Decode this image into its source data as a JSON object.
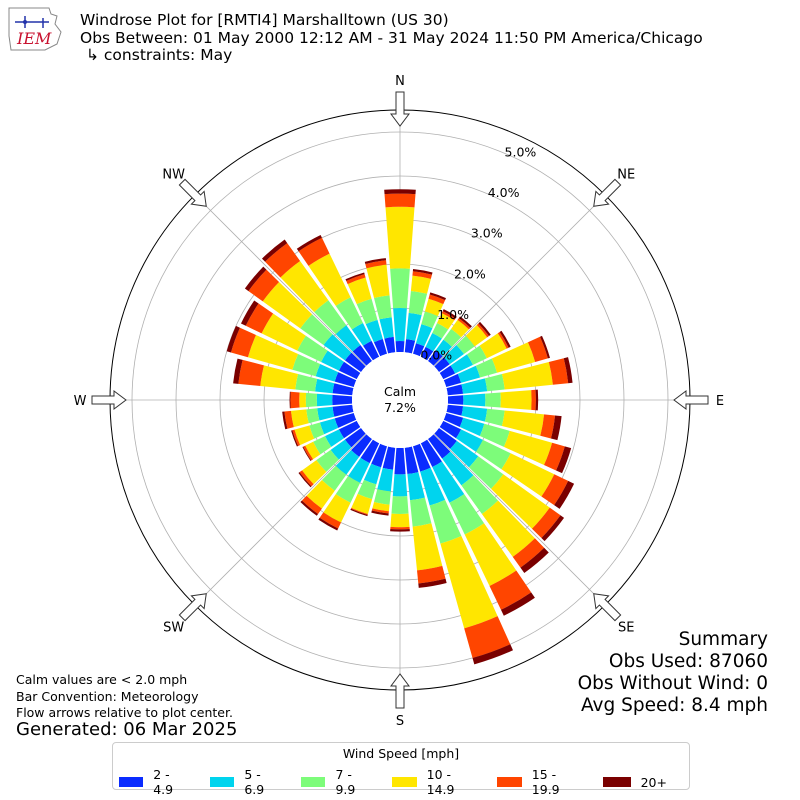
{
  "header": {
    "line1": "Windrose Plot for [RMTI4] Marshalltown (US 30)",
    "line2": "Obs Between: 01 May 2000 12:12 AM - 31 May 2024 11:50 PM America/Chicago",
    "line3": "↳ constraints: May"
  },
  "logo": {
    "text": "IEM",
    "color": "#c8102e"
  },
  "notes": {
    "calm_note": "Calm values are < 2.0 mph",
    "bar_convention": "Bar Convention: Meteorology",
    "flow_arrows": "Flow arrows relative to plot center.",
    "generated": "Generated: 06 Mar 2025"
  },
  "summary": {
    "title": "Summary",
    "obs_used": "Obs Used: 87060",
    "obs_without_wind": "Obs Without Wind: 0",
    "avg_speed": "Avg Speed: 8.4 mph"
  },
  "legend": {
    "title": "Wind Speed [mph]",
    "items": [
      {
        "label": "2 - 4.9",
        "color": "#0a2cff"
      },
      {
        "label": "5 - 6.9",
        "color": "#00d4ee"
      },
      {
        "label": "7 - 9.9",
        "color": "#7dfc7a"
      },
      {
        "label": "10 - 14.9",
        "color": "#ffe600"
      },
      {
        "label": "15 - 19.9",
        "color": "#ff4500"
      },
      {
        "label": "20+",
        "color": "#7a0000"
      }
    ]
  },
  "chart_data": {
    "type": "windrose",
    "calm_label": "Calm",
    "calm_value": "7.2%",
    "cardinal_labels": [
      "N",
      "NE",
      "E",
      "SE",
      "S",
      "SW",
      "W",
      "NW"
    ],
    "radial_ticks": [
      "0.0%",
      "1.0%",
      "2.0%",
      "3.0%",
      "4.0%",
      "5.0%"
    ],
    "rmax_percent": 5.5,
    "directions_deg": [
      0,
      10,
      20,
      30,
      40,
      50,
      60,
      70,
      80,
      90,
      100,
      110,
      120,
      130,
      140,
      150,
      160,
      170,
      180,
      190,
      200,
      210,
      220,
      230,
      240,
      250,
      260,
      270,
      280,
      290,
      300,
      310,
      320,
      330,
      340,
      350
    ],
    "bins": [
      "2 - 4.9",
      "5 - 6.9",
      "7 - 9.9",
      "10 - 14.9",
      "15 - 19.9",
      "20+"
    ],
    "cumulative_percent": [
      [
        0.25,
        1.0,
        1.9,
        3.3,
        3.6,
        3.7
      ],
      [
        0.3,
        0.9,
        1.4,
        1.75,
        1.85,
        1.9
      ],
      [
        0.25,
        0.7,
        1.0,
        1.3,
        1.4,
        1.45
      ],
      [
        0.25,
        0.6,
        0.85,
        1.1,
        1.15,
        1.2
      ],
      [
        0.3,
        0.6,
        0.9,
        1.15,
        1.2,
        1.25
      ],
      [
        0.3,
        0.7,
        1.0,
        1.35,
        1.4,
        1.45
      ],
      [
        0.3,
        0.75,
        1.1,
        1.6,
        1.65,
        1.7
      ],
      [
        0.35,
        0.8,
        1.2,
        2.1,
        2.4,
        2.45
      ],
      [
        0.35,
        0.9,
        1.3,
        2.4,
        2.75,
        2.85
      ],
      [
        0.35,
        0.85,
        1.2,
        1.9,
        2.0,
        2.05
      ],
      [
        0.35,
        0.9,
        1.3,
        2.2,
        2.45,
        2.6
      ],
      [
        0.4,
        0.9,
        1.5,
        2.5,
        2.8,
        2.95
      ],
      [
        0.45,
        1.0,
        1.7,
        2.8,
        3.15,
        3.3
      ],
      [
        0.5,
        1.1,
        1.8,
        3.1,
        3.4,
        3.5
      ],
      [
        0.55,
        1.3,
        2.1,
        3.3,
        3.6,
        3.75
      ],
      [
        0.6,
        1.5,
        2.3,
        3.6,
        4.2,
        4.35
      ],
      [
        0.6,
        1.4,
        2.3,
        4.3,
        5.0,
        5.15
      ],
      [
        0.6,
        1.2,
        1.8,
        2.8,
        3.1,
        3.2
      ],
      [
        0.6,
        1.1,
        1.5,
        1.8,
        1.85,
        1.9
      ],
      [
        0.5,
        1.0,
        1.3,
        1.45,
        1.5,
        1.55
      ],
      [
        0.5,
        0.9,
        1.25,
        1.6,
        1.62,
        1.65
      ],
      [
        0.5,
        1.0,
        1.5,
        2.0,
        2.15,
        2.2
      ],
      [
        0.5,
        1.0,
        1.45,
        1.95,
        2.1,
        2.15
      ],
      [
        0.45,
        0.85,
        1.25,
        1.65,
        1.72,
        1.75
      ],
      [
        0.45,
        0.8,
        1.1,
        1.3,
        1.35,
        1.37
      ],
      [
        0.45,
        0.8,
        1.05,
        1.4,
        1.45,
        1.48
      ],
      [
        0.45,
        0.8,
        1.05,
        1.4,
        1.55,
        1.6
      ],
      [
        0.45,
        0.8,
        1.05,
        1.2,
        1.4,
        1.42
      ],
      [
        0.45,
        0.85,
        1.3,
        2.1,
        2.6,
        2.72
      ],
      [
        0.45,
        0.9,
        1.45,
        2.5,
        2.9,
        3.0
      ],
      [
        0.45,
        0.9,
        1.5,
        2.4,
        2.8,
        2.92
      ],
      [
        0.45,
        1.05,
        1.7,
        2.75,
        3.15,
        3.25
      ],
      [
        0.45,
        1.0,
        1.7,
        2.8,
        3.3,
        3.4
      ],
      [
        0.4,
        0.85,
        1.5,
        2.6,
        3.0,
        3.07
      ],
      [
        0.35,
        0.8,
        1.3,
        1.8,
        1.88,
        1.92
      ],
      [
        0.35,
        0.8,
        1.3,
        2.0,
        2.1,
        2.15
      ]
    ]
  }
}
